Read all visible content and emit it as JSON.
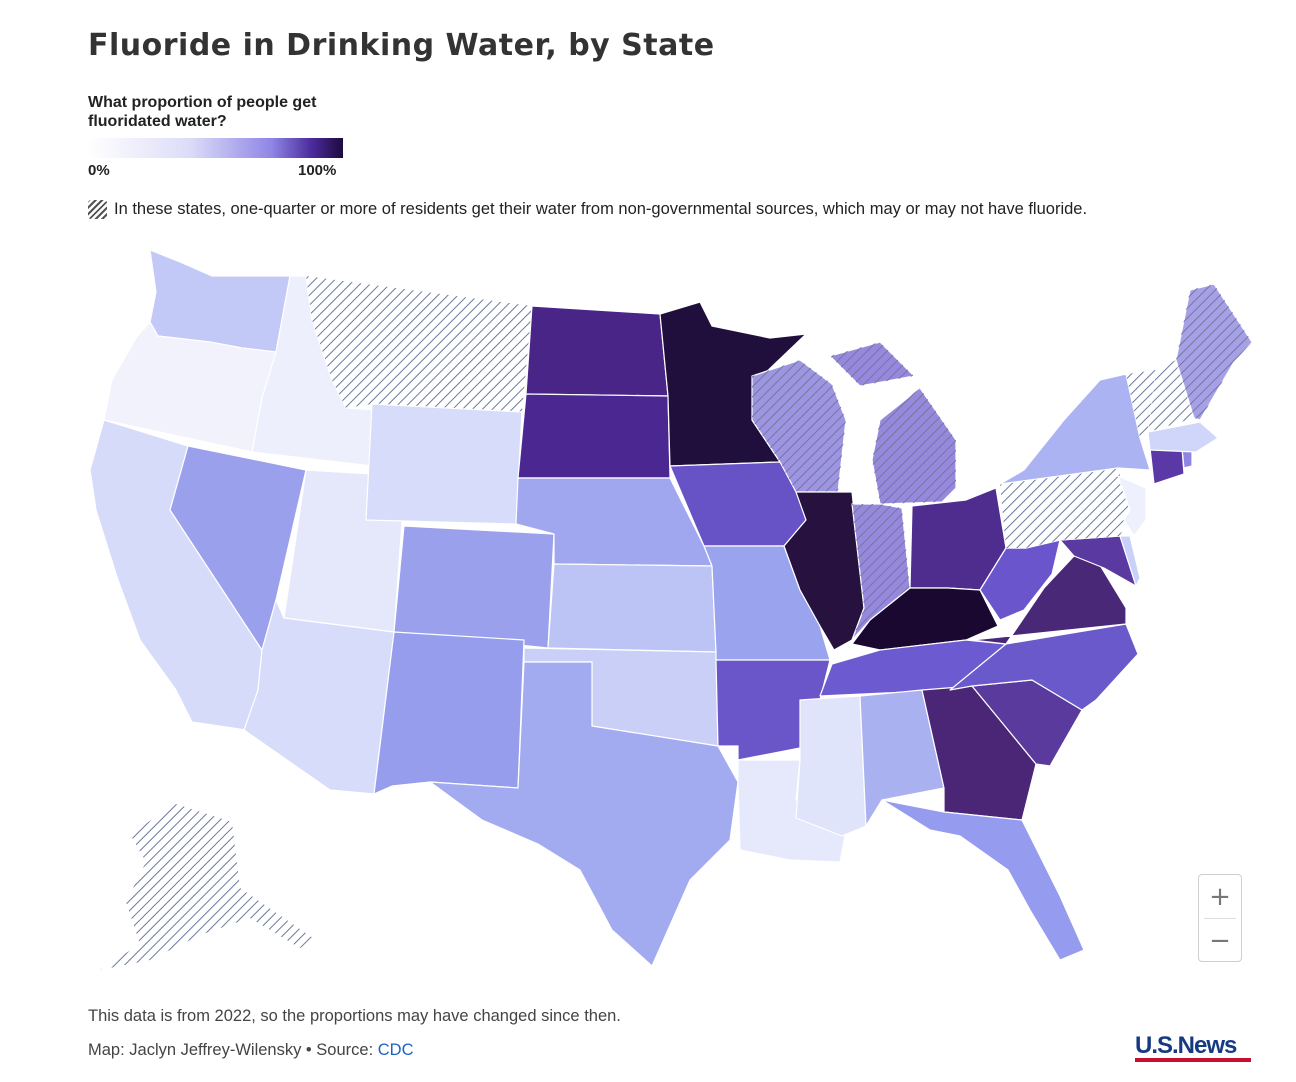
{
  "title": "Fluoride in Drinking Water, by State",
  "legend": {
    "question": "What proportion of people get fluoridated water?",
    "min_label": "0%",
    "max_label": "100%",
    "scale_colors": [
      "#ffffff",
      "#dcdcf8",
      "#8f86e6",
      "#4a2a9a",
      "#1e0a3e"
    ],
    "hatch_note": "In these states, one-quarter or more of residents get their water from non-governmental sources, which may or may not have fluoride."
  },
  "zoom": {
    "in_label": "+",
    "out_label": "−"
  },
  "footer": {
    "note": "This data is from 2022, so the proportions may have changed since then.",
    "credit_prefix": "Map: Jaclyn Jeffrey-Wilensky • Source: ",
    "source_link": "CDC",
    "logo_text": "U.S.News"
  },
  "hatch_color": "#6b7a9c",
  "states": [
    {
      "id": "WA",
      "color": "#c3c9f6",
      "hatched": false
    },
    {
      "id": "OR",
      "color": "#f1f2fc",
      "hatched": false
    },
    {
      "id": "CA",
      "color": "#d6dbf9",
      "hatched": false
    },
    {
      "id": "ID",
      "color": "#edeffc",
      "hatched": false
    },
    {
      "id": "NV",
      "color": "#9aa0ec",
      "hatched": false
    },
    {
      "id": "UT",
      "color": "#e5e8fb",
      "hatched": false
    },
    {
      "id": "AZ",
      "color": "#d7dcfa",
      "hatched": false
    },
    {
      "id": "MT",
      "color": "#ffffff",
      "hatched": true
    },
    {
      "id": "WY",
      "color": "#d6dcfa",
      "hatched": false
    },
    {
      "id": "CO",
      "color": "#9aa0ec",
      "hatched": false
    },
    {
      "id": "NM",
      "color": "#969dec",
      "hatched": false
    },
    {
      "id": "ND",
      "color": "#4a2588",
      "hatched": false
    },
    {
      "id": "SD",
      "color": "#4b2891",
      "hatched": false
    },
    {
      "id": "NE",
      "color": "#a1a7ee",
      "hatched": false
    },
    {
      "id": "KS",
      "color": "#bcc3f5",
      "hatched": false
    },
    {
      "id": "OK",
      "color": "#c9cff7",
      "hatched": false
    },
    {
      "id": "TX",
      "color": "#a3abf0",
      "hatched": false
    },
    {
      "id": "MN",
      "color": "#200f3c",
      "hatched": false
    },
    {
      "id": "IA",
      "color": "#6752c6",
      "hatched": false
    },
    {
      "id": "MO",
      "color": "#9aa3ee",
      "hatched": false
    },
    {
      "id": "AR",
      "color": "#6a56c8",
      "hatched": false
    },
    {
      "id": "LA",
      "color": "#e5e9fb",
      "hatched": false
    },
    {
      "id": "WI",
      "color": "#7f70d8",
      "hatched": true
    },
    {
      "id": "IL",
      "color": "#26113f",
      "hatched": false
    },
    {
      "id": "MI",
      "color": "#7560d2",
      "hatched": true
    },
    {
      "id": "IN",
      "color": "#7560d2",
      "hatched": true
    },
    {
      "id": "OH",
      "color": "#4e2d8f",
      "hatched": false
    },
    {
      "id": "KY",
      "color": "#1a0830",
      "hatched": false
    },
    {
      "id": "TN",
      "color": "#6c5ad0",
      "hatched": false
    },
    {
      "id": "MS",
      "color": "#e0e4fb",
      "hatched": false
    },
    {
      "id": "AL",
      "color": "#aab1f0",
      "hatched": false
    },
    {
      "id": "GA",
      "color": "#4b2677",
      "hatched": false
    },
    {
      "id": "FL",
      "color": "#959bee",
      "hatched": false
    },
    {
      "id": "SC",
      "color": "#5a3a9c",
      "hatched": false
    },
    {
      "id": "NC",
      "color": "#6a59cb",
      "hatched": false
    },
    {
      "id": "VA",
      "color": "#4a2878",
      "hatched": false
    },
    {
      "id": "WV",
      "color": "#6a55cc",
      "hatched": false
    },
    {
      "id": "MD",
      "color": "#5a3aa0",
      "hatched": false
    },
    {
      "id": "DE",
      "color": "#c9d1f8",
      "hatched": false
    },
    {
      "id": "PA",
      "color": "#ffffff",
      "hatched": true
    },
    {
      "id": "NJ",
      "color": "#eef1fd",
      "hatched": false
    },
    {
      "id": "NY",
      "color": "#abb3f3",
      "hatched": false
    },
    {
      "id": "CT",
      "color": "#5a38a6",
      "hatched": false
    },
    {
      "id": "RI",
      "color": "#8f85e2",
      "hatched": false
    },
    {
      "id": "MA",
      "color": "#cfd6fa",
      "hatched": false
    },
    {
      "id": "VT",
      "color": "#ffffff",
      "hatched": true
    },
    {
      "id": "NH",
      "color": "#ffffff",
      "hatched": true
    },
    {
      "id": "ME",
      "color": "#8b80df",
      "hatched": true
    },
    {
      "id": "AK",
      "color": "#ffffff",
      "hatched": true
    }
  ]
}
